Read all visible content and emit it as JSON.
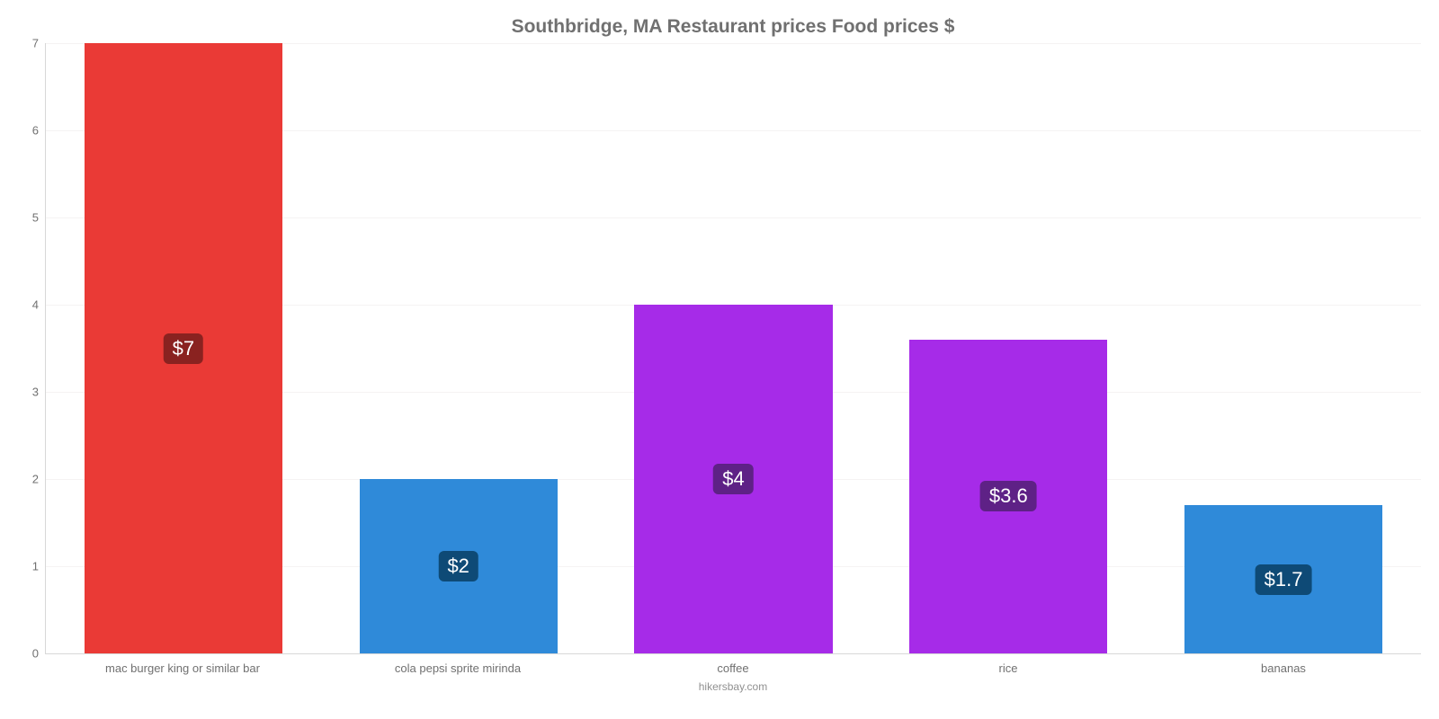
{
  "chart": {
    "type": "bar",
    "title": "Southbridge, MA Restaurant prices Food prices $",
    "title_fontsize": 21,
    "title_color": "#707070",
    "categories": [
      "mac burger king or similar bar",
      "cola pepsi sprite mirinda",
      "coffee",
      "rice",
      "bananas"
    ],
    "values": [
      7,
      2,
      4,
      3.6,
      1.7
    ],
    "value_labels": [
      "$7",
      "$2",
      "$4",
      "$3.6",
      "$1.7"
    ],
    "bar_colors": [
      "#ea3a36",
      "#2f8ad9",
      "#a62be8",
      "#a62be8",
      "#2f8ad9"
    ],
    "badge_colors": [
      "#8a2220",
      "#0e4a76",
      "#5e2186",
      "#5e2186",
      "#0e4a76"
    ],
    "ylim": [
      0,
      7
    ],
    "ytick_step": 1,
    "yticks": [
      0,
      1,
      2,
      3,
      4,
      5,
      6,
      7
    ],
    "background_color": "#ffffff",
    "grid_color": "#f5f3f3",
    "axis_color": "#d8d8d8",
    "label_color": "#707070",
    "label_fontsize": 13,
    "value_fontsize": 22,
    "bar_width": 0.72,
    "footer": "hikersbay.com",
    "footer_color": "#909090"
  }
}
